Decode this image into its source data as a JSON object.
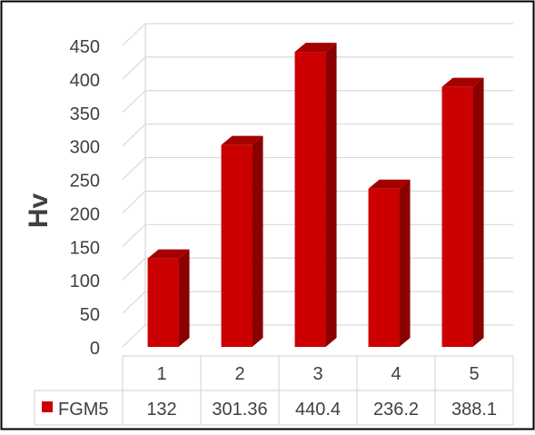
{
  "chart_data": {
    "type": "bar",
    "ylabel": "Hv",
    "xlabel": "",
    "title": "",
    "categories": [
      "1",
      "2",
      "3",
      "4",
      "5"
    ],
    "series": [
      {
        "name": "FGM5",
        "values": [
          132,
          301.36,
          440.4,
          236.2,
          388.1
        ],
        "value_labels": [
          "132",
          "301.36",
          "440.4",
          "236.2",
          "388.1"
        ],
        "color": "#cc0000"
      }
    ],
    "ylim": [
      0,
      450
    ],
    "y_ticks": [
      "0",
      "50",
      "100",
      "150",
      "200",
      "250",
      "300",
      "350",
      "400",
      "450"
    ],
    "grid": true,
    "bar_style": "3d",
    "data_table": true,
    "colors": {
      "bar_front": "#cc0000",
      "bar_side": "#8b0000",
      "bar_top": "#a50000",
      "grid": "#d9d9d9",
      "axis_text": "#404040",
      "border": "#000000"
    }
  }
}
